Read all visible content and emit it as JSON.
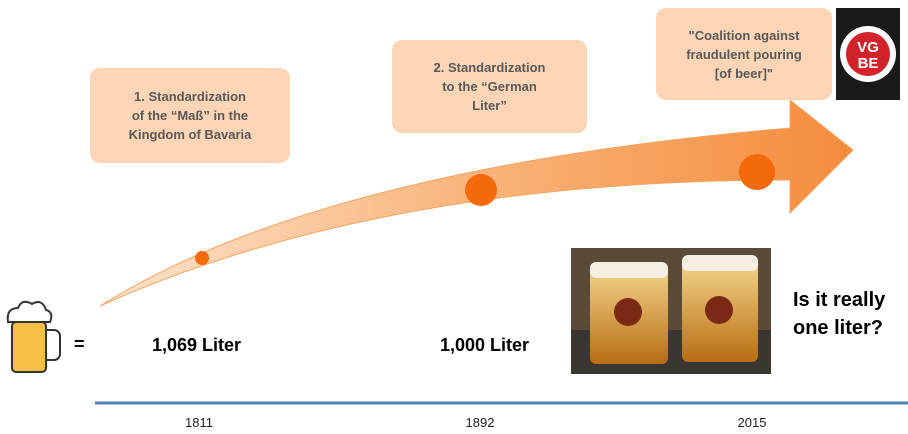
{
  "boxes": [
    {
      "lines": [
        "1. Standardization",
        "of the “Maß” in the",
        "Kingdom of Bavaria"
      ]
    },
    {
      "lines": [
        "2. Standardization",
        "to the “German",
        "Liter”"
      ]
    },
    {
      "lines": [
        "\"Coalition against",
        "fraudulent pouring",
        "[of beer]\""
      ]
    }
  ],
  "logo": {
    "top": "VG",
    "bottom": "BE"
  },
  "equals": "=",
  "volumes": [
    "1,069 Liter",
    "1,000 Liter"
  ],
  "question": [
    "Is it really",
    "one liter?"
  ],
  "timeline": {
    "years": [
      "1811",
      "1892",
      "2015"
    ]
  }
}
